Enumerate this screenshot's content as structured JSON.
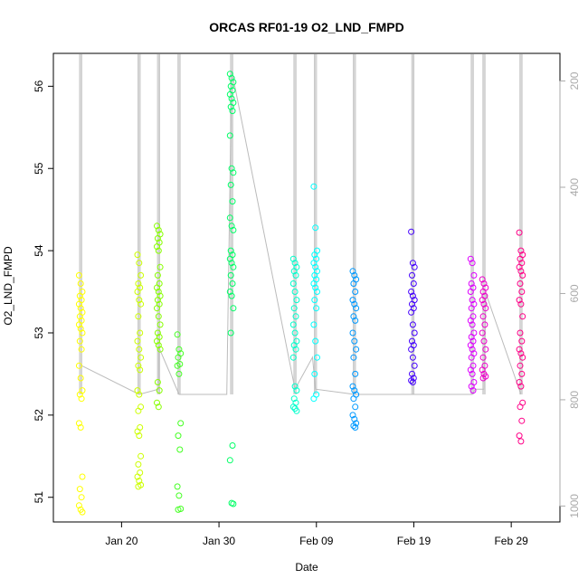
{
  "chart_data": {
    "type": "scatter",
    "title": "ORCAS RF01-19 O2_LND_FMPD",
    "xlabel": "Date",
    "ylabel": "O2_LND_FMPD",
    "x_range": [
      "2016-01-13",
      "2016-03-05"
    ],
    "ylim": [
      50.7,
      56.4
    ],
    "y2lim": [
      1030,
      148
    ],
    "x_ticks": [
      {
        "date": "2016-01-20",
        "label": "Jan 20"
      },
      {
        "date": "2016-01-30",
        "label": "Jan 30"
      },
      {
        "date": "2016-02-09",
        "label": "Feb 09"
      },
      {
        "date": "2016-02-19",
        "label": "Feb 19"
      },
      {
        "date": "2016-02-29",
        "label": "Feb 29"
      }
    ],
    "y_ticks": [
      "51",
      "52",
      "53",
      "54",
      "55",
      "56"
    ],
    "y2_ticks": [
      "200",
      "400",
      "600",
      "800",
      "1000"
    ],
    "grid": false,
    "colors": {
      "frame": "#000000",
      "altitude_trace": "#bbbbbb",
      "right_axis": "#aaaaaa"
    },
    "pressure_trace": [
      {
        "date": "2016-01-15.8",
        "p": 735
      },
      {
        "date": "2016-01-21.8",
        "p": 790
      },
      {
        "date": "2016-01-23.8",
        "p": 780
      },
      {
        "date": "2016-01-23.8",
        "p": 700
      },
      {
        "date": "2016-01-25.9",
        "p": 790
      },
      {
        "date": "2016-01-30.8",
        "p": 790
      },
      {
        "date": "2016-01-31.3",
        "p": 180
      },
      {
        "date": "2016-02-06.8",
        "p": 780
      },
      {
        "date": "2016-02-08.6",
        "p": 720
      },
      {
        "date": "2016-02-08.9",
        "p": 780
      },
      {
        "date": "2016-02-12.9",
        "p": 790
      },
      {
        "date": "2016-02-18.9",
        "p": 790
      },
      {
        "date": "2016-02-25.0",
        "p": 790
      },
      {
        "date": "2016-02-25.3",
        "p": 780
      },
      {
        "date": "2016-02-26.2",
        "p": 780
      },
      {
        "date": "2016-02-26.4",
        "p": 600
      },
      {
        "date": "2016-03-01.0",
        "p": 790
      }
    ],
    "series": [
      {
        "date": "2016-01-15.8",
        "color": "#ffff00",
        "values": [
          53.7,
          53.6,
          53.5,
          53.45,
          53.4,
          53.35,
          53.3,
          53.25,
          53.2,
          53.15,
          53.1,
          53.05,
          53.0,
          52.9,
          52.8,
          52.6,
          52.45,
          52.3,
          52.25,
          52.2,
          51.9,
          51.85,
          51.25,
          51.1,
          51.0,
          50.9,
          50.85,
          50.82
        ]
      },
      {
        "date": "2016-01-21.8",
        "color": "#ccff00",
        "values": [
          53.95,
          53.85,
          53.7,
          53.6,
          53.55,
          53.5,
          53.4,
          53.35,
          53.2,
          53.0,
          52.9,
          52.8,
          52.7,
          52.6,
          52.55,
          52.3,
          52.25,
          52.1,
          52.05,
          51.85,
          51.8,
          51.75,
          51.5,
          51.4,
          51.3,
          51.25,
          51.2,
          51.15,
          51.13
        ]
      },
      {
        "date": "2016-01-23.8",
        "color": "#88ff00",
        "values": [
          54.3,
          54.25,
          54.2,
          54.15,
          54.1,
          54.05,
          54.0,
          53.8,
          53.7,
          53.6,
          53.55,
          53.5,
          53.45,
          53.4,
          53.35,
          53.3,
          53.2,
          53.1,
          53.0,
          52.95,
          52.9,
          52.85,
          52.8,
          52.4,
          52.3,
          52.15,
          52.1
        ]
      },
      {
        "date": "2016-01-25.9",
        "color": "#44ff22",
        "values": [
          52.98,
          52.8,
          52.75,
          52.7,
          52.62,
          52.6,
          52.5,
          51.9,
          51.75,
          51.58,
          51.13,
          51.02,
          50.86,
          50.85
        ]
      },
      {
        "date": "2016-01-31.3",
        "color": "#00ff66",
        "values": [
          56.15,
          56.1,
          56.05,
          56.0,
          55.95,
          55.9,
          55.85,
          55.8,
          55.75,
          55.7,
          55.4,
          55.0,
          54.95,
          54.8,
          54.6,
          54.4,
          54.3,
          54.25,
          54.0,
          53.95,
          53.9,
          53.85,
          53.8,
          53.7,
          53.6,
          53.5,
          53.45,
          53.3,
          53.0,
          51.63,
          51.45,
          50.93,
          50.92
        ]
      },
      {
        "date": "2016-02-06.8",
        "color": "#00ffcc",
        "values": [
          53.9,
          53.85,
          53.8,
          53.75,
          53.7,
          53.6,
          53.5,
          53.4,
          53.3,
          53.2,
          53.1,
          53.0,
          52.9,
          52.85,
          52.8,
          52.7,
          52.35,
          52.3,
          52.2,
          52.15,
          52.1,
          52.08,
          52.05
        ]
      },
      {
        "date": "2016-02-08.9",
        "color": "#00ffff",
        "values": [
          54.78,
          54.28,
          54.0,
          53.95,
          53.9,
          53.85,
          53.8,
          53.75,
          53.7,
          53.65,
          53.6,
          53.55,
          53.5,
          53.4,
          53.3,
          53.1,
          52.9,
          52.7,
          52.5,
          52.25,
          52.2
        ]
      },
      {
        "date": "2016-02-12.9",
        "color": "#0099ff",
        "values": [
          53.75,
          53.7,
          53.65,
          53.6,
          53.5,
          53.4,
          53.35,
          53.3,
          53.2,
          53.15,
          53.0,
          52.9,
          52.8,
          52.7,
          52.5,
          52.35,
          52.3,
          52.25,
          52.2,
          52.1,
          52.0,
          51.95,
          51.9,
          51.87,
          51.85
        ]
      },
      {
        "date": "2016-02-18.9",
        "color": "#4400ff",
        "values": [
          54.23,
          53.85,
          53.8,
          53.7,
          53.6,
          53.5,
          53.45,
          53.4,
          53.35,
          53.3,
          53.25,
          53.1,
          53.0,
          52.9,
          52.85,
          52.8,
          52.7,
          52.6,
          52.5,
          52.45,
          52.42,
          52.4
        ]
      },
      {
        "date": "2016-02-25.0",
        "color": "#dd00ff",
        "values": [
          53.9,
          53.85,
          53.7,
          53.6,
          53.55,
          53.5,
          53.4,
          53.35,
          53.3,
          53.2,
          53.15,
          53.1,
          53.0,
          52.95,
          52.9,
          52.85,
          52.8,
          52.75,
          52.7,
          52.6,
          52.55,
          52.5,
          52.4,
          52.35,
          52.3
        ]
      },
      {
        "date": "2016-02-26.2",
        "color": "#ee00cc",
        "values": [
          53.65,
          53.6,
          53.55,
          53.5,
          53.45,
          53.4,
          53.35,
          53.3,
          53.2,
          53.1,
          53.0,
          52.9,
          52.8,
          52.7,
          52.6,
          52.55,
          52.5,
          52.47,
          52.45
        ]
      },
      {
        "date": "2016-03-01.0",
        "color": "#ff0088",
        "values": [
          54.22,
          54.0,
          53.95,
          53.9,
          53.85,
          53.8,
          53.75,
          53.7,
          53.6,
          53.5,
          53.4,
          53.35,
          53.2,
          53.0,
          52.9,
          52.8,
          52.75,
          52.7,
          52.6,
          52.5,
          52.4,
          52.35,
          52.15,
          52.1,
          51.93,
          51.75,
          51.68
        ]
      }
    ]
  }
}
